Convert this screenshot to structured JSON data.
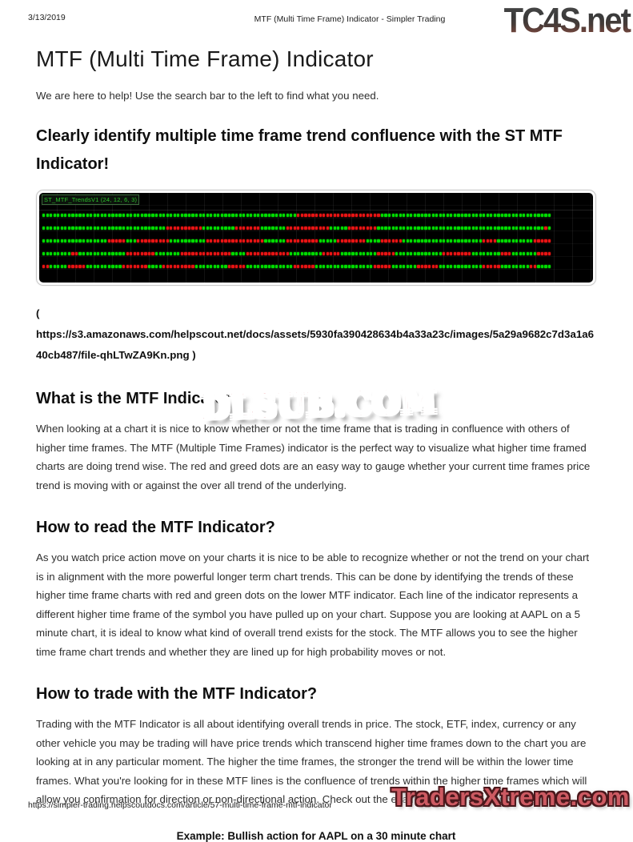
{
  "print": {
    "date": "3/13/2019",
    "title": "MTF (Multi Time Frame) Indicator - Simpler Trading",
    "footer_url": "https://simpler-trading.helpscoutdocs.com/article/57-multi-time-frame-mtf-indicator"
  },
  "watermarks": {
    "top_right": "TC4S.net",
    "center": "DLSUB.COM",
    "bottom_right": "TradersXtreme.com"
  },
  "article": {
    "title": "MTF (Multi Time Frame) Indicator",
    "intro": "We are here to help! Use the search bar to the left to find what you need.",
    "headline": "Clearly identify multiple time frame trend confluence with the ST MTF Indicator!",
    "image_caption": {
      "open": "(",
      "url": "https://s3.amazonaws.com/helpscout.net/docs/assets/5930fa390428634b4a33a23c/images/5a29a9682c7d3a1a640cb487/file-qhLTwZA9Kn.png",
      "close": " )"
    },
    "sections": [
      {
        "heading": "What is the MTF Indicator?",
        "body": "When looking at a chart it is nice to know whether or not the time frame that is trading in confluence with others of higher time frames. The MTF (Multiple Time Frames) indicator is the perfect way to visualize what higher time framed charts are doing trend wise. The red and greed dots are an easy way to gauge whether your current time frames price trend is moving with or against the over all trend of the underlying."
      },
      {
        "heading": "How to read the MTF Indicator?",
        "body": "As you watch price action move on your charts it is nice to be able to recognize whether or not the trend on your chart is in alignment with the more powerful longer term chart trends. This can be done by identifying the trends of these higher time frame charts with red and green dots on the lower MTF indicator. Each line of the indicator represents a different higher time frame of the symbol you have pulled up on your chart. Suppose you are looking at AAPL on a 5 minute chart, it is ideal to know what kind of overall trend exists for the stock. The MTF allows you to see the higher time frame chart trends and whether they are lined up for high probability moves or not."
      },
      {
        "heading": "How to trade with the MTF Indicator?",
        "body": "Trading with the MTF Indicator is all about identifying overall trends in price. The stock, ETF, index, currency or any other vehicle you may be trading will have price trends which transcend higher time frames down to the chart you are looking at in any particular moment. The higher the time frames, the stronger the trend will be within the lower time frames. What you're looking for in these MTF lines is the confluence of trends within the higher time frames which will allow you confirmation for direction or non-directional action. Check out the examples below for clarity."
      }
    ],
    "example_caption": "Example: Bullish action for AAPL on a 30 minute chart"
  },
  "chart_data": {
    "type": "heatmap",
    "title": "ST_MTF_TrendsV1 (24, 12, 6, 3)",
    "description": "MTF indicator panel: five horizontal strips of trend dots on black; each row is a higher time frame; green dot = bullish trend, red dot = bearish trend; segments listed left to right as [color, dot-count]",
    "colors": {
      "green": "#00dc00",
      "red": "#e81414",
      "background": "#000000",
      "label": "#2bc52b"
    },
    "rows": [
      {
        "segments": [
          [
            "g",
            70
          ],
          [
            "r",
            23
          ],
          [
            "g",
            47
          ]
        ]
      },
      {
        "segments": [
          [
            "g",
            34
          ],
          [
            "r",
            10
          ],
          [
            "g",
            9
          ],
          [
            "r",
            7
          ],
          [
            "g",
            7
          ],
          [
            "r",
            12
          ],
          [
            "g",
            5
          ],
          [
            "r",
            8
          ],
          [
            "g",
            46
          ],
          [
            "r",
            1
          ],
          [
            "g",
            1
          ]
        ]
      },
      {
        "segments": [
          [
            "g",
            18
          ],
          [
            "r",
            5
          ],
          [
            "g",
            3
          ],
          [
            "r",
            9
          ],
          [
            "g",
            10
          ],
          [
            "r",
            16
          ],
          [
            "g",
            6
          ],
          [
            "r",
            9
          ],
          [
            "g",
            5
          ],
          [
            "r",
            8
          ],
          [
            "g",
            4
          ],
          [
            "r",
            6
          ],
          [
            "g",
            22
          ],
          [
            "r",
            4
          ],
          [
            "g",
            10
          ],
          [
            "r",
            5
          ]
        ]
      },
      {
        "segments": [
          [
            "g",
            8
          ],
          [
            "r",
            2
          ],
          [
            "g",
            13
          ],
          [
            "r",
            8
          ],
          [
            "g",
            7
          ],
          [
            "r",
            14
          ],
          [
            "g",
            4
          ],
          [
            "r",
            12
          ],
          [
            "g",
            9
          ],
          [
            "r",
            5
          ],
          [
            "g",
            10
          ],
          [
            "r",
            5
          ],
          [
            "g",
            13
          ],
          [
            "r",
            8
          ],
          [
            "g",
            8
          ],
          [
            "r",
            3
          ],
          [
            "g",
            7
          ],
          [
            "r",
            4
          ]
        ]
      },
      {
        "segments": [
          [
            "r",
            2
          ],
          [
            "g",
            5
          ],
          [
            "r",
            5
          ],
          [
            "g",
            10
          ],
          [
            "r",
            7
          ],
          [
            "g",
            4
          ],
          [
            "r",
            9
          ],
          [
            "g",
            9
          ],
          [
            "r",
            5
          ],
          [
            "g",
            13
          ],
          [
            "r",
            6
          ],
          [
            "g",
            16
          ],
          [
            "r",
            5
          ],
          [
            "g",
            7
          ],
          [
            "r",
            6
          ],
          [
            "g",
            12
          ],
          [
            "r",
            5
          ],
          [
            "g",
            8
          ],
          [
            "r",
            2
          ],
          [
            "g",
            4
          ]
        ]
      }
    ]
  }
}
